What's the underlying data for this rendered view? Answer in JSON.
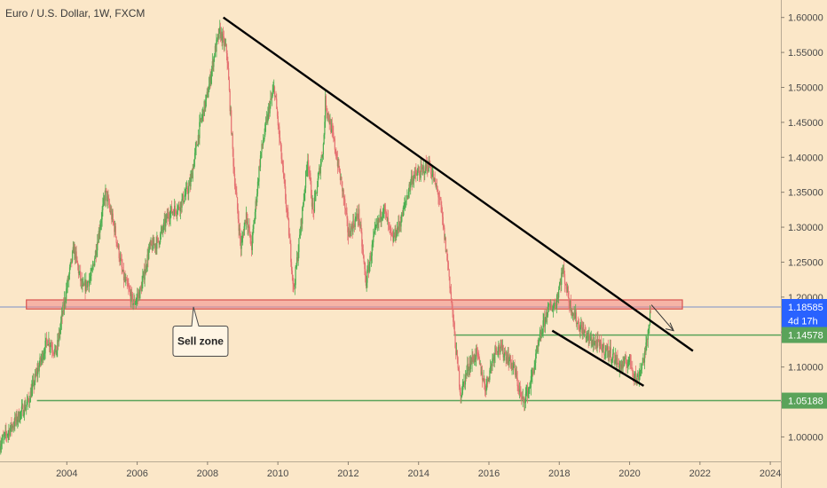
{
  "title": "Euro / U.S. Dollar, 1W, FXCM",
  "chart_data": {
    "type": "candlestick",
    "title": "Euro / U.S. Dollar, 1W, FXCM",
    "xlim": [
      2002.1,
      2024.3
    ],
    "ylim": [
      0.965,
      1.625
    ],
    "x_ticks": [
      "2004",
      "2006",
      "2008",
      "2010",
      "2012",
      "2014",
      "2016",
      "2018",
      "2020",
      "2022",
      "2024"
    ],
    "x_tick_values": [
      2004,
      2006,
      2008,
      2010,
      2012,
      2014,
      2016,
      2018,
      2020,
      2022,
      2024
    ],
    "y_ticks": [
      "1.60000",
      "1.55000",
      "1.50000",
      "1.45000",
      "1.40000",
      "1.35000",
      "1.30000",
      "1.25000",
      "1.20000",
      "1.15000",
      "1.10000",
      "1.05000",
      "1.00000"
    ],
    "y_tick_values": [
      1.6,
      1.55,
      1.5,
      1.45,
      1.4,
      1.35,
      1.3,
      1.25,
      1.2,
      1.15,
      1.1,
      1.05,
      1.0
    ],
    "price_labels": [
      {
        "label": "1.18585",
        "value": 1.18585,
        "color": "#2962FF"
      },
      {
        "label": "4d 17h",
        "value": 1.166,
        "color": "#2962FF"
      },
      {
        "label": "1.14578",
        "value": 1.14578,
        "color": "#5AA35A"
      },
      {
        "label": "1.05188",
        "value": 1.05188,
        "color": "#5AA35A"
      }
    ],
    "close_path": [
      [
        2002.1,
        0.99
      ],
      [
        2002.5,
        1.02
      ],
      [
        2002.9,
        1.05
      ],
      [
        2003.2,
        1.1
      ],
      [
        2003.45,
        1.14
      ],
      [
        2003.7,
        1.12
      ],
      [
        2003.95,
        1.2
      ],
      [
        2004.2,
        1.27
      ],
      [
        2004.45,
        1.21
      ],
      [
        2004.7,
        1.23
      ],
      [
        2004.9,
        1.29
      ],
      [
        2005.1,
        1.35
      ],
      [
        2005.35,
        1.3
      ],
      [
        2005.6,
        1.23
      ],
      [
        2005.9,
        1.19
      ],
      [
        2006.1,
        1.21
      ],
      [
        2006.35,
        1.27
      ],
      [
        2006.6,
        1.28
      ],
      [
        2006.9,
        1.32
      ],
      [
        2007.2,
        1.33
      ],
      [
        2007.5,
        1.36
      ],
      [
        2007.8,
        1.45
      ],
      [
        2008.0,
        1.49
      ],
      [
        2008.2,
        1.55
      ],
      [
        2008.35,
        1.58
      ],
      [
        2008.55,
        1.55
      ],
      [
        2008.75,
        1.38
      ],
      [
        2008.95,
        1.27
      ],
      [
        2009.1,
        1.32
      ],
      [
        2009.25,
        1.27
      ],
      [
        2009.5,
        1.4
      ],
      [
        2009.75,
        1.47
      ],
      [
        2009.9,
        1.5
      ],
      [
        2010.1,
        1.4
      ],
      [
        2010.3,
        1.3
      ],
      [
        2010.45,
        1.21
      ],
      [
        2010.65,
        1.3
      ],
      [
        2010.85,
        1.4
      ],
      [
        2011.0,
        1.32
      ],
      [
        2011.3,
        1.42
      ],
      [
        2011.35,
        1.48
      ],
      [
        2011.6,
        1.42
      ],
      [
        2011.85,
        1.35
      ],
      [
        2012.0,
        1.29
      ],
      [
        2012.3,
        1.32
      ],
      [
        2012.5,
        1.22
      ],
      [
        2012.75,
        1.29
      ],
      [
        2013.0,
        1.33
      ],
      [
        2013.25,
        1.28
      ],
      [
        2013.5,
        1.31
      ],
      [
        2013.8,
        1.37
      ],
      [
        2014.1,
        1.38
      ],
      [
        2014.3,
        1.39
      ],
      [
        2014.6,
        1.34
      ],
      [
        2014.85,
        1.24
      ],
      [
        2015.05,
        1.13
      ],
      [
        2015.2,
        1.06
      ],
      [
        2015.4,
        1.1
      ],
      [
        2015.65,
        1.12
      ],
      [
        2015.9,
        1.07
      ],
      [
        2016.2,
        1.13
      ],
      [
        2016.45,
        1.12
      ],
      [
        2016.7,
        1.1
      ],
      [
        2016.95,
        1.05
      ],
      [
        2017.15,
        1.07
      ],
      [
        2017.45,
        1.14
      ],
      [
        2017.65,
        1.18
      ],
      [
        2017.9,
        1.19
      ],
      [
        2018.1,
        1.24
      ],
      [
        2018.3,
        1.19
      ],
      [
        2018.55,
        1.16
      ],
      [
        2018.85,
        1.14
      ],
      [
        2019.15,
        1.13
      ],
      [
        2019.45,
        1.12
      ],
      [
        2019.75,
        1.1
      ],
      [
        2020.0,
        1.11
      ],
      [
        2020.2,
        1.08
      ],
      [
        2020.45,
        1.12
      ],
      [
        2020.6,
        1.185
      ]
    ],
    "horizontal_levels": [
      {
        "value": 1.05188,
        "x_start": 2003.15,
        "color": "#5AA35A"
      },
      {
        "value": 1.14578,
        "x_start": 2015.0,
        "color": "#5AA35A"
      }
    ],
    "zones": [
      {
        "name": "Sell zone",
        "x_start": 2002.85,
        "x_end": 2021.5,
        "y_low": 1.183,
        "y_high": 1.196,
        "color": "#F28B8B"
      }
    ],
    "trendlines": [
      {
        "x1": 2008.45,
        "y1": 1.6,
        "x2": 2021.8,
        "y2": 1.123
      },
      {
        "x1": 2017.8,
        "y1": 1.152,
        "x2": 2020.4,
        "y2": 1.073
      }
    ],
    "annotations": [
      {
        "text": "Sell zone",
        "x": 2007.8,
        "y": 1.137,
        "anchor_x": 2007.6,
        "anchor_y": 1.186
      }
    ],
    "projection": [
      [
        2020.62,
        1.189
      ],
      [
        2021.25,
        1.152
      ]
    ],
    "current_price": 1.18585
  }
}
